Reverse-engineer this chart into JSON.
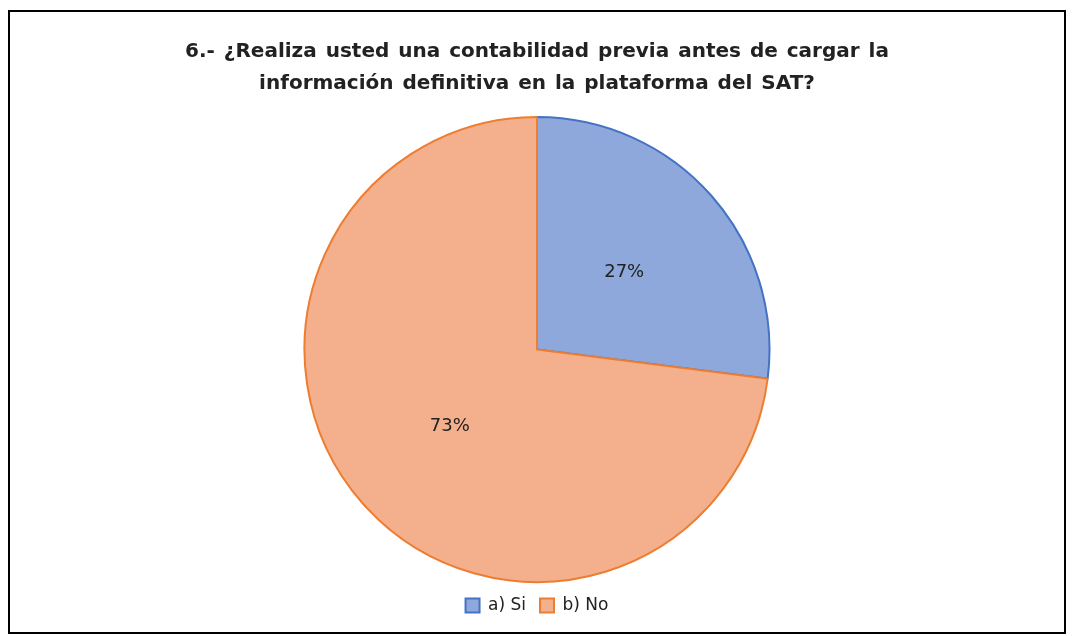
{
  "chart_data": {
    "type": "pie",
    "title": "6.- ¿Realiza usted una contabilidad previa antes de cargar la información definitiva en la plataforma del SAT?",
    "categories": [
      "a) Si",
      "b) No"
    ],
    "values": [
      27,
      73
    ],
    "colors": [
      "#8fa8db",
      "#f4b08c"
    ],
    "value_labels": [
      "27%",
      "73%"
    ],
    "legend": "bottom"
  }
}
